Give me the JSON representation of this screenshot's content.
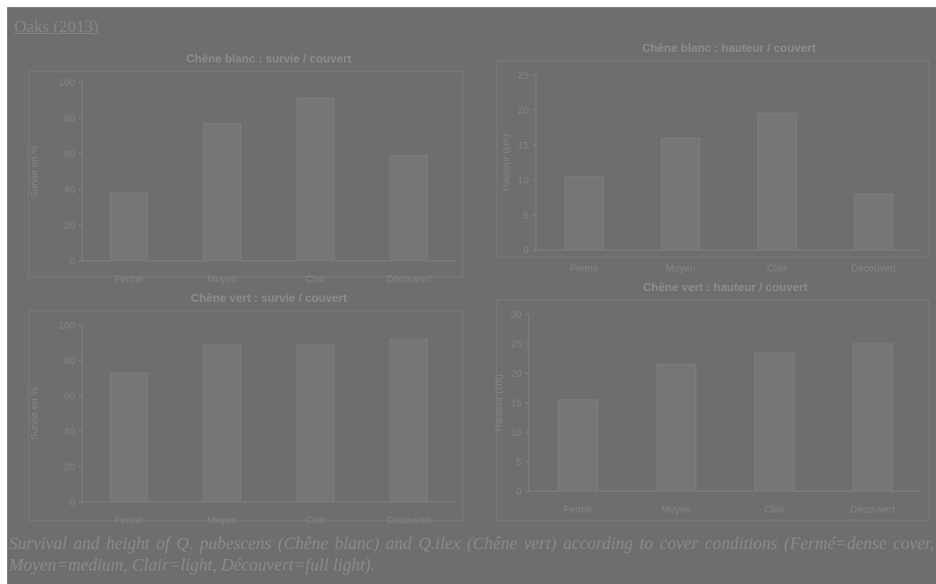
{
  "header": "Oaks (2013)",
  "caption": "Survival and height of Q. pubescens (Chêne blanc) and Q.ilex (Chêne vert) according to cover conditions (Fermé=dense cover, Moyen=medium, Clair=light, Découvert=full light).",
  "colors": {
    "background": "#6e6e6e",
    "bar": "#767676",
    "text": "#858585"
  },
  "chart_data": [
    {
      "type": "bar",
      "title": "Chêne blanc : survie / couvert",
      "ylabel": "Survie en %",
      "xlabel": "",
      "categories": [
        "Fermé",
        "Moyen",
        "Clair",
        "Découvert"
      ],
      "values": [
        38,
        77,
        91,
        59
      ],
      "ylim": [
        0,
        100
      ],
      "yticks": [
        0,
        20,
        40,
        60,
        80,
        100
      ],
      "grid": false
    },
    {
      "type": "bar",
      "title": "Chêne blanc : hauteur / couvert",
      "ylabel": "Hauteur (cm)",
      "xlabel": "",
      "categories": [
        "Fermé",
        "Moyen",
        "Clair",
        "Découvert"
      ],
      "values": [
        10.5,
        16,
        19.5,
        8
      ],
      "ylim": [
        0,
        25
      ],
      "yticks": [
        0,
        5,
        10,
        15,
        20,
        25
      ],
      "grid": false
    },
    {
      "type": "bar",
      "title": "Chêne vert : survie / couvert",
      "ylabel": "Survie en %",
      "xlabel": "",
      "categories": [
        "Fermé",
        "Moyen",
        "Clair",
        "Découvert"
      ],
      "values": [
        73,
        89,
        89,
        92
      ],
      "ylim": [
        0,
        100
      ],
      "yticks": [
        0,
        20,
        40,
        60,
        80,
        100
      ],
      "grid": false
    },
    {
      "type": "bar",
      "title": "Chêne vert : hauteur / couvert",
      "ylabel": "Hauteur (cm)",
      "xlabel": "",
      "categories": [
        "Fermé",
        "Moyen",
        "Clair",
        "Découvert"
      ],
      "values": [
        15.5,
        21.5,
        23.5,
        25
      ],
      "ylim": [
        0,
        30
      ],
      "yticks": [
        0,
        5,
        10,
        15,
        20,
        25,
        30
      ],
      "grid": false
    }
  ]
}
